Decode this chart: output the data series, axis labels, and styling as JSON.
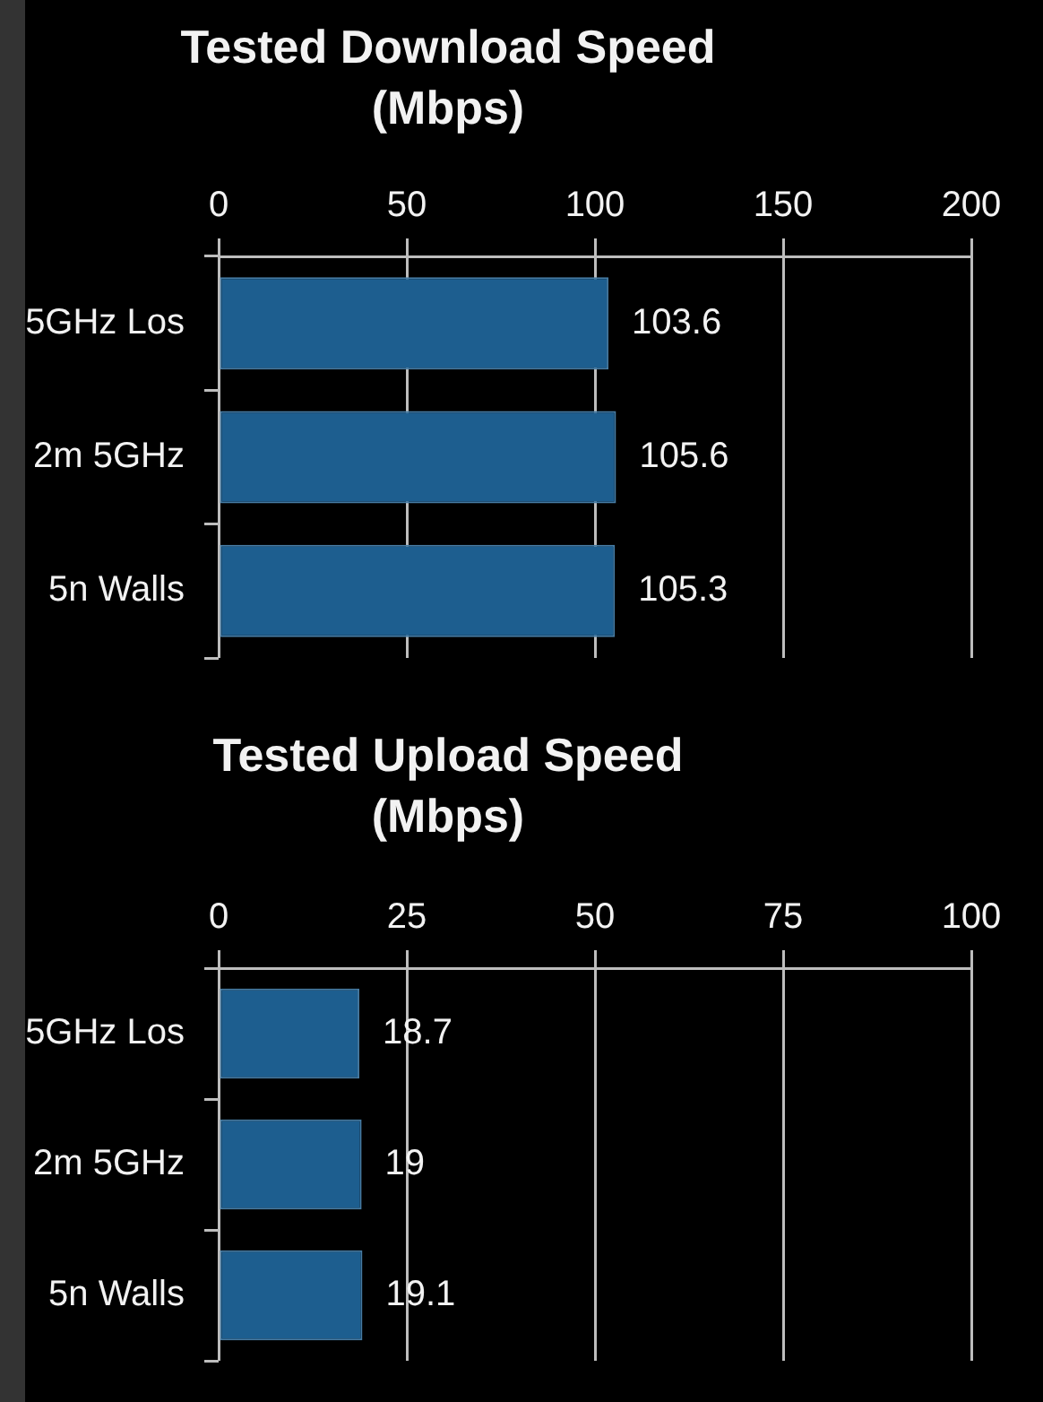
{
  "chart_data": [
    {
      "type": "bar",
      "title": "Tested Download Speed (Mbps)",
      "orientation": "horizontal",
      "categories": [
        "5GHz Los",
        "2m 5GHz",
        "5n Walls"
      ],
      "values": [
        103.6,
        105.6,
        105.3
      ],
      "color": "#1d5e8f",
      "xlim": [
        0,
        200
      ],
      "xticks": [
        0,
        50,
        100,
        150,
        200
      ],
      "grid": "x",
      "data_labels": true
    },
    {
      "type": "bar",
      "title": "Tested Upload Speed (Mbps)",
      "orientation": "horizontal",
      "categories": [
        "5GHz Los",
        "2m 5GHz",
        "5n Walls"
      ],
      "values": [
        18.7,
        19,
        19.1
      ],
      "color": "#1d5e8f",
      "xlim": [
        0,
        100
      ],
      "xticks": [
        0,
        25,
        50,
        75,
        100
      ],
      "grid": "x",
      "data_labels": true
    }
  ]
}
